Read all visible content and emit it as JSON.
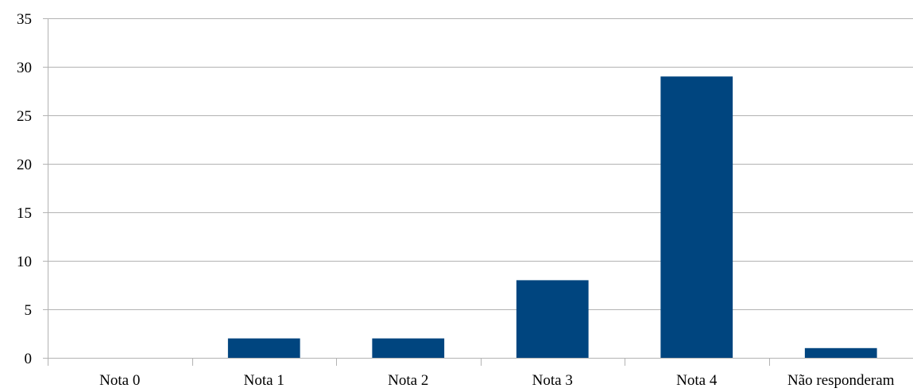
{
  "chart_data": {
    "type": "bar",
    "title": "",
    "xlabel": "",
    "ylabel": "",
    "categories": [
      "Nota 0",
      "Nota 1",
      "Nota 2",
      "Nota 3",
      "Nota 4",
      "Não responderam"
    ],
    "values": [
      0,
      2,
      2,
      8,
      29,
      1
    ],
    "ylim": [
      0,
      35
    ],
    "yticks": [
      0,
      5,
      10,
      15,
      20,
      25,
      30,
      35
    ],
    "grid": true,
    "legend": "none",
    "colors": {
      "bar": "#00457f",
      "grid": "#b3b3b3",
      "axis": "#b3b3b3"
    }
  }
}
